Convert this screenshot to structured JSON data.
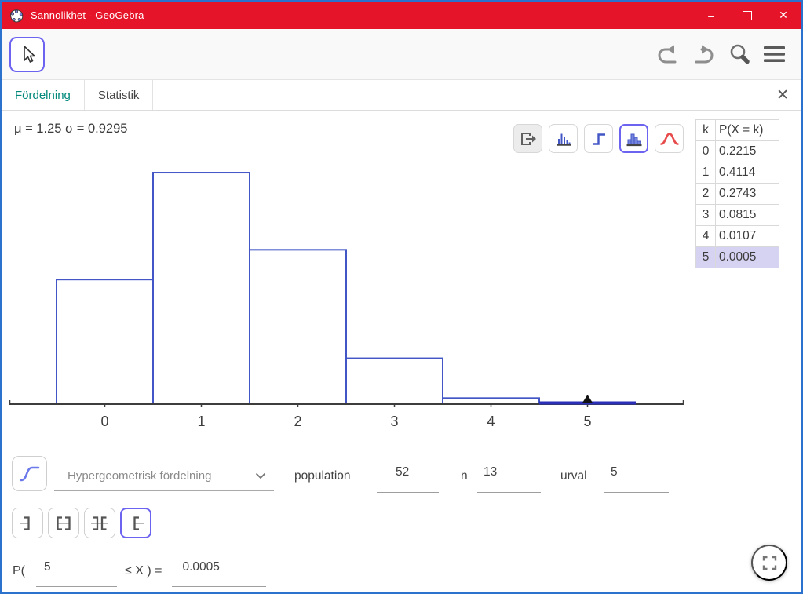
{
  "window": {
    "title": "Sannolikhet - GeoGebra",
    "controls": {
      "minimize": "–",
      "close": "✕"
    }
  },
  "tabs": {
    "distribution": "Fördelning",
    "statistics": "Statistik",
    "close": "✕"
  },
  "stats_summary": "μ = 1.25 σ = 0.9295",
  "table": {
    "headers": [
      "k",
      "P(X = k)"
    ],
    "rows": [
      [
        "0",
        "0.2215"
      ],
      [
        "1",
        "0.4114"
      ],
      [
        "2",
        "0.2743"
      ],
      [
        "3",
        "0.0815"
      ],
      [
        "4",
        "0.0107"
      ],
      [
        "5",
        "0.0005"
      ]
    ],
    "highlighted_k": "5"
  },
  "chart_data": {
    "type": "bar",
    "subtype": "probability-histogram",
    "categories": [
      0,
      1,
      2,
      3,
      4,
      5
    ],
    "values": [
      0.2215,
      0.4114,
      0.2743,
      0.0815,
      0.0107,
      0.0005
    ],
    "x_tick_labels": [
      "0",
      "1",
      "2",
      "3",
      "4",
      "5"
    ],
    "bar_width": 1,
    "xlim": [
      -0.95,
      5.95
    ],
    "ylim": [
      0,
      0.52
    ],
    "grid": false,
    "legend": false,
    "title": "",
    "xlabel": "",
    "ylabel": "",
    "highlight_interval": {
      "from": 4.5,
      "to": 5.5,
      "marker_x": 5
    },
    "colors": {
      "bar_stroke": "#4356c6",
      "bar_fill": "#ffffff",
      "highlight": "#2b2fb8",
      "axis": "#3d3d3d",
      "marker": "#111111",
      "tick_label": "#3d3d3d"
    }
  },
  "controls": {
    "distribution_select": {
      "value": "Hypergeometrisk fördelning"
    },
    "parameters": [
      {
        "label": "population",
        "value": "52"
      },
      {
        "label": "n",
        "value": "13"
      },
      {
        "label": "urval",
        "value": "5"
      }
    ],
    "probability_row": {
      "prefix": "P(",
      "lower_value": "5",
      "operator": "≤ X ) =",
      "result": "0.0005"
    }
  },
  "colors": {
    "titlebar": "#e61428",
    "window_border": "#2b72cf",
    "active_tab": "#00897b",
    "selected_border": "#6c63f0",
    "row_highlight": "#d6d2f2"
  }
}
